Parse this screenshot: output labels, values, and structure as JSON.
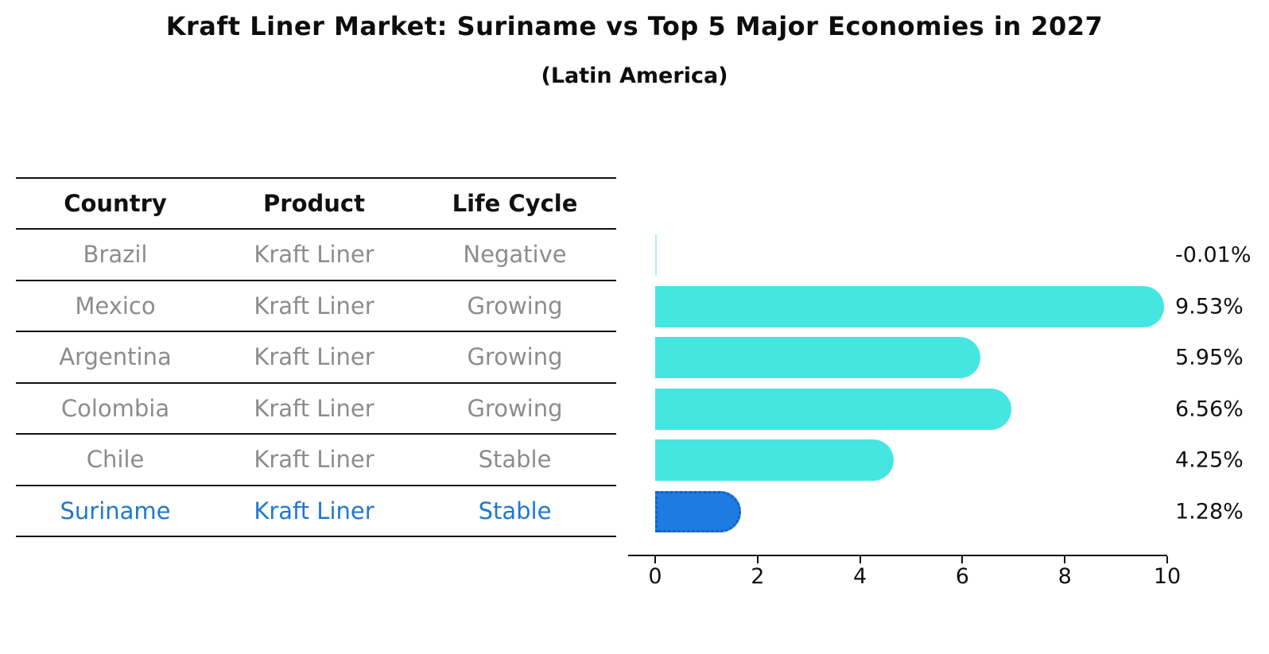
{
  "title": "Kraft Liner Market: Suriname vs Top 5 Major Economies in 2027",
  "subtitle": "(Latin America)",
  "table": {
    "headers": {
      "country": "Country",
      "product": "Product",
      "life_cycle": "Life Cycle"
    }
  },
  "rows": [
    {
      "country": "Brazil",
      "product": "Kraft Liner",
      "life_cycle": "Negative",
      "value": -0.01,
      "value_label": "-0.01%",
      "highlighted": false
    },
    {
      "country": "Mexico",
      "product": "Kraft Liner",
      "life_cycle": "Growing",
      "value": 9.53,
      "value_label": "9.53%",
      "highlighted": false
    },
    {
      "country": "Argentina",
      "product": "Kraft Liner",
      "life_cycle": "Growing",
      "value": 5.95,
      "value_label": "5.95%",
      "highlighted": false
    },
    {
      "country": "Colombia",
      "product": "Kraft Liner",
      "life_cycle": "Growing",
      "value": 6.56,
      "value_label": "6.56%",
      "highlighted": false
    },
    {
      "country": "Chile",
      "product": "Kraft Liner",
      "life_cycle": "Stable",
      "value": 4.25,
      "value_label": "4.25%",
      "highlighted": false
    },
    {
      "country": "Suriname",
      "product": "Kraft Liner",
      "life_cycle": "Stable",
      "value": 1.28,
      "value_label": "1.28%",
      "highlighted": true
    }
  ],
  "chart_data": {
    "type": "bar",
    "orientation": "horizontal",
    "title": "Kraft Liner Market: Suriname vs Top 5 Major Economies in 2027",
    "subtitle": "(Latin America)",
    "categories": [
      "Brazil",
      "Mexico",
      "Argentina",
      "Colombia",
      "Chile",
      "Suriname"
    ],
    "values": [
      -0.01,
      9.53,
      5.95,
      6.56,
      4.25,
      1.28
    ],
    "value_labels": [
      "-0.01%",
      "9.53%",
      "5.95%",
      "6.56%",
      "4.25%",
      "1.28%"
    ],
    "xlabel": "",
    "ylabel": "",
    "xlim": [
      0,
      10
    ],
    "x_ticks": [
      0,
      2,
      4,
      6,
      8,
      10
    ],
    "grid": false,
    "legend": false,
    "highlight_category": "Suriname",
    "colors": {
      "bar_default": "#45E5E2",
      "bar_highlight": "#1E7BE1",
      "bar_highlight_border": "#0F5FC8",
      "highlight_text": "#1E78D2",
      "muted_text": "#8C8C8C",
      "axis": "#111111"
    }
  }
}
